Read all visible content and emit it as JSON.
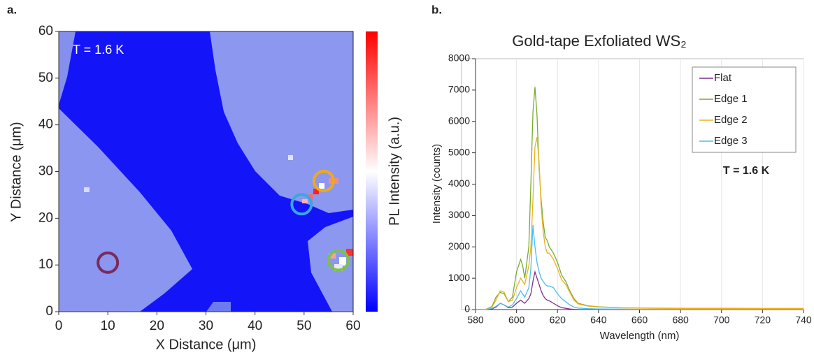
{
  "chart_data": [
    {
      "type": "heatmap",
      "panel_label": "a.",
      "annotation": "T = 1.6 K",
      "x_label": "X Distance (μm)",
      "y_label": "Y Distance (μm)",
      "colorbar_label": "PL Intensity (a.u.)",
      "xlim": [
        0,
        60
      ],
      "xticks": [
        0,
        10,
        20,
        30,
        40,
        50,
        60
      ],
      "ylim": [
        0,
        60
      ],
      "yticks": [
        0,
        10,
        20,
        30,
        40,
        50,
        60
      ],
      "markers": [
        {
          "x": 10,
          "y": 10.5,
          "color": "#7a2a5e"
        },
        {
          "x": 49.5,
          "y": 23,
          "color": "#3ba6e0"
        },
        {
          "x": 54,
          "y": 28,
          "color": "#eeaa1c"
        },
        {
          "x": 57,
          "y": 11,
          "color": "#7cc24a"
        }
      ]
    },
    {
      "type": "line",
      "panel_label": "b.",
      "title": "Gold-tape Exfoliated WS₂",
      "annotation": "T = 1.6 K",
      "x_label": "Wavelength (nm)",
      "y_label": "Intensity (counts)",
      "xlim": [
        580,
        740
      ],
      "xticks": [
        580,
        600,
        620,
        640,
        660,
        680,
        700,
        720,
        740
      ],
      "ylim": [
        0,
        8000
      ],
      "yticks": [
        0,
        1000,
        2000,
        3000,
        4000,
        5000,
        6000,
        7000,
        8000
      ],
      "grid": true,
      "x": [
        580,
        585,
        588,
        590,
        592,
        594,
        596,
        598,
        600,
        602,
        603,
        604,
        606,
        607,
        608,
        609,
        610,
        611,
        612,
        613,
        614,
        615,
        616,
        618,
        620,
        622,
        624,
        626,
        628,
        630,
        635,
        640,
        650,
        660,
        680,
        700,
        720,
        740
      ],
      "series": [
        {
          "name": "Flat",
          "color": "#7e2f8e",
          "values": [
            0,
            2,
            20,
            80,
            200,
            150,
            60,
            80,
            200,
            300,
            250,
            200,
            350,
            500,
            900,
            1200,
            1000,
            800,
            600,
            450,
            350,
            300,
            280,
            200,
            120,
            60,
            40,
            20,
            10,
            5,
            3,
            2,
            1,
            1,
            1,
            1,
            1,
            1
          ]
        },
        {
          "name": "Edge 1",
          "color": "#77ac30",
          "values": [
            5,
            10,
            100,
            400,
            550,
            500,
            250,
            400,
            1200,
            1600,
            1400,
            1000,
            2000,
            4000,
            6300,
            7100,
            6200,
            4500,
            3500,
            2800,
            2300,
            2200,
            2000,
            1800,
            1500,
            1100,
            900,
            600,
            350,
            200,
            120,
            90,
            60,
            50,
            40,
            40,
            35,
            35
          ]
        },
        {
          "name": "Edge 2",
          "color": "#edb120",
          "values": [
            5,
            10,
            80,
            300,
            600,
            550,
            250,
            300,
            700,
            1000,
            900,
            800,
            1400,
            2000,
            3500,
            5200,
            5500,
            4700,
            3300,
            2500,
            2000,
            1800,
            1800,
            1600,
            1300,
            950,
            800,
            550,
            300,
            180,
            110,
            80,
            55,
            45,
            35,
            35,
            30,
            30
          ]
        },
        {
          "name": "Edge 3",
          "color": "#4dbeee",
          "values": [
            2,
            5,
            40,
            100,
            200,
            150,
            80,
            150,
            350,
            600,
            500,
            400,
            700,
            1300,
            2700,
            2000,
            1500,
            1200,
            1000,
            900,
            800,
            750,
            750,
            700,
            500,
            350,
            250,
            150,
            80,
            50,
            30,
            20,
            15,
            10,
            10,
            10,
            10,
            10
          ]
        }
      ]
    }
  ]
}
